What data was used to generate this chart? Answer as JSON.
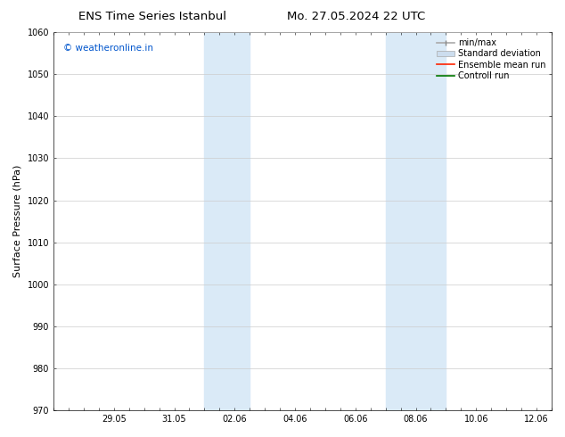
{
  "title_left": "ENS Time Series Istanbul",
  "title_right": "Mo. 27.05.2024 22 UTC",
  "ylabel": "Surface Pressure (hPa)",
  "ylim": [
    970,
    1060
  ],
  "yticks": [
    970,
    980,
    990,
    1000,
    1010,
    1020,
    1030,
    1040,
    1050,
    1060
  ],
  "xtick_labels": [
    "29.05",
    "31.05",
    "02.06",
    "04.06",
    "06.06",
    "08.06",
    "10.06",
    "12.06"
  ],
  "xtick_positions": [
    2,
    4,
    6,
    8,
    10,
    12,
    14,
    16
  ],
  "watermark": "© weatheronline.in",
  "watermark_color": "#0055cc",
  "background_color": "#ffffff",
  "plot_bg_color": "#ffffff",
  "shaded_bands": [
    {
      "x_start": 5.0,
      "x_end": 6.5
    },
    {
      "x_start": 11.0,
      "x_end": 13.0
    }
  ],
  "shade_color": "#daeaf7",
  "xlim": [
    0,
    16
  ],
  "grid_color": "#cccccc",
  "tick_label_fontsize": 7,
  "title_fontsize": 9.5,
  "ylabel_fontsize": 8,
  "watermark_fontsize": 7.5,
  "legend_fontsize": 7
}
